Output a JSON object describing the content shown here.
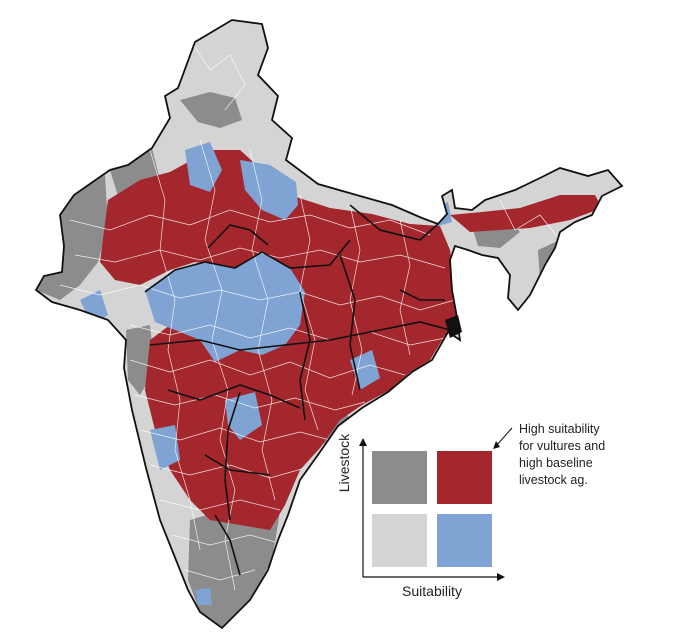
{
  "legend": {
    "x_label": "Suitability",
    "y_label": "Livestock",
    "annotation_lines": [
      "High suitability",
      "for vultures and",
      "high baseline",
      "livestock ag."
    ],
    "cells": [
      {
        "name": "low-suitability-high-livestock",
        "color": "#8c8c8c"
      },
      {
        "name": "high-suitability-high-livestock",
        "color": "#a4272e"
      },
      {
        "name": "low-suitability-low-livestock",
        "color": "#d4d4d4"
      },
      {
        "name": "high-suitability-low-livestock",
        "color": "#7fa3d3"
      }
    ]
  },
  "colors": {
    "high_suit_high_livestock": "#a4272e",
    "low_suit_high_livestock": "#8c8c8c",
    "low_suit_low_livestock": "#d4d4d4",
    "high_suit_low_livestock": "#7fa3d3",
    "district_border": "#ffffff",
    "state_border": "#111111"
  }
}
